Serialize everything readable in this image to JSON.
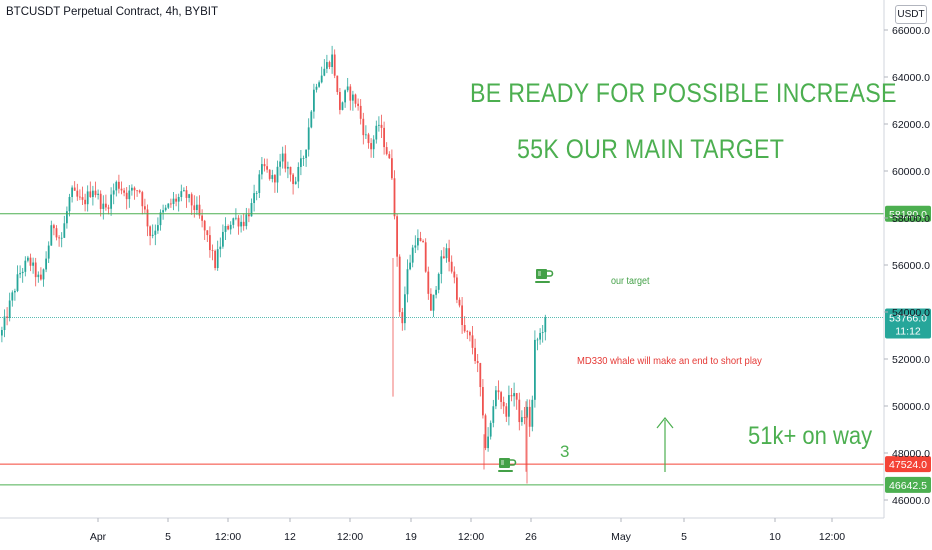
{
  "header": {
    "title": "BTCUSDT Perpetual Contract, 4h, BYBIT",
    "currency_button": "USDT"
  },
  "annotations": {
    "headline_1": "BE READY FOR POSSIBLE INCREASE",
    "headline_2": "55K OUR MAIN TARGET",
    "target_note": "our target",
    "whale_note": "MD330 whale will make an end to short play",
    "count_note": "3",
    "way_note": "51k+ on way"
  },
  "icons": {
    "target_marker": "coffee-cup-icon",
    "low_marker": "coffee-cup-icon",
    "up_arrow": "arrow-up-icon"
  },
  "colors": {
    "up": "#26a69a",
    "down": "#ef5350",
    "annotation_green": "#4caf50",
    "annotation_red": "#e53935",
    "resistance_line": "#4caf50",
    "support_line": "#f44336",
    "price_line": "#26a69a"
  },
  "chart_data": {
    "type": "candlestick",
    "title": "BTCUSDT Perpetual Contract, 4h, BYBIT",
    "currency": "USDT",
    "x_tick_labels": [
      "Apr",
      "5",
      "12:00",
      "12",
      "12:00",
      "19",
      "12:00",
      "26",
      "May",
      "5",
      "10",
      "12:00"
    ],
    "y_tick_labels": [
      "46000.0",
      "48000.0",
      "50000.0",
      "52000.0",
      "54000.0",
      "56000.0",
      "58000.0",
      "60000.0",
      "62000.0",
      "64000.0",
      "66000.0"
    ],
    "ylim": [
      45500,
      66300
    ],
    "horizontal_levels": [
      {
        "label": "58180.0",
        "value": 58180,
        "color": "#4caf50"
      },
      {
        "label": "47524.0",
        "value": 47524,
        "color": "#f44336"
      },
      {
        "label": "46642.5",
        "value": 46642.5,
        "color": "#4caf50"
      }
    ],
    "current_price": {
      "label": "53766.0",
      "value": 53766,
      "countdown": "11:12",
      "color": "#26a69a"
    },
    "grid": false,
    "price_path": [
      [
        0,
        53000
      ],
      [
        8,
        54200
      ],
      [
        18,
        55600
      ],
      [
        28,
        56200
      ],
      [
        40,
        55200
      ],
      [
        52,
        57800
      ],
      [
        60,
        57000
      ],
      [
        70,
        59100
      ],
      [
        82,
        58600
      ],
      [
        92,
        59300
      ],
      [
        104,
        58300
      ],
      [
        116,
        59500
      ],
      [
        126,
        59000
      ],
      [
        138,
        59300
      ],
      [
        150,
        57200
      ],
      [
        160,
        58100
      ],
      [
        172,
        58700
      ],
      [
        184,
        59000
      ],
      [
        196,
        58300
      ],
      [
        206,
        57200
      ],
      [
        214,
        56000
      ],
      [
        222,
        57300
      ],
      [
        232,
        58000
      ],
      [
        242,
        57800
      ],
      [
        252,
        58600
      ],
      [
        262,
        60200
      ],
      [
        272,
        59600
      ],
      [
        282,
        60500
      ],
      [
        294,
        59500
      ],
      [
        304,
        60800
      ],
      [
        314,
        63700
      ],
      [
        324,
        64400
      ],
      [
        332,
        64900
      ],
      [
        338,
        62600
      ],
      [
        346,
        63400
      ],
      [
        356,
        62900
      ],
      [
        364,
        61500
      ],
      [
        370,
        61000
      ],
      [
        378,
        62000
      ],
      [
        386,
        60800
      ],
      [
        392,
        59700
      ],
      [
        396,
        56300
      ],
      [
        400,
        53100
      ],
      [
        406,
        55600
      ],
      [
        414,
        57100
      ],
      [
        422,
        56800
      ],
      [
        430,
        53900
      ],
      [
        438,
        55900
      ],
      [
        446,
        56600
      ],
      [
        454,
        55300
      ],
      [
        462,
        53200
      ],
      [
        470,
        52800
      ],
      [
        478,
        51400
      ],
      [
        484,
        48300
      ],
      [
        490,
        49200
      ],
      [
        496,
        51000
      ],
      [
        504,
        49600
      ],
      [
        512,
        50800
      ],
      [
        520,
        49200
      ],
      [
        526,
        49900
      ],
      [
        530,
        48900
      ],
      [
        534,
        52600
      ],
      [
        540,
        53100
      ],
      [
        545,
        53766
      ]
    ]
  }
}
